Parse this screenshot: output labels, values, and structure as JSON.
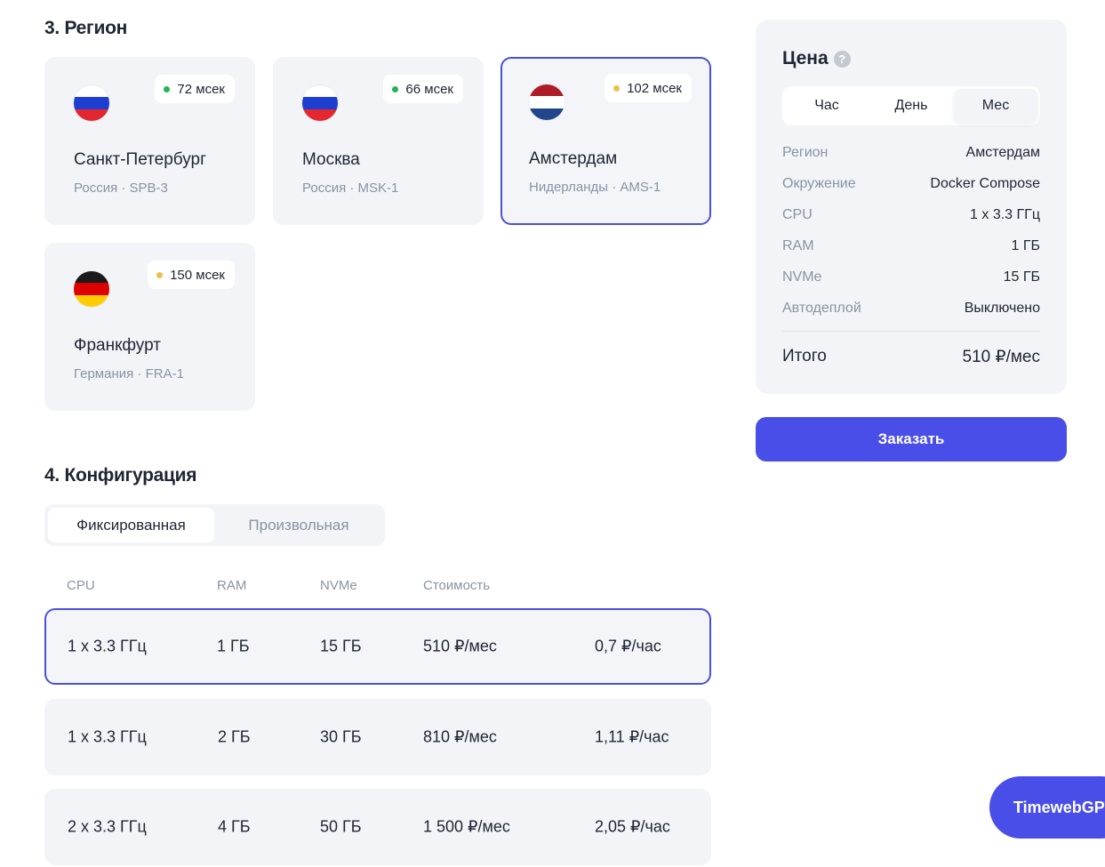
{
  "region": {
    "title": "3. Регион",
    "cards": [
      {
        "city": "Санкт-Петербург",
        "sub": "Россия · SPB-3",
        "ping": "72 мсек",
        "ping_color": "#22b35a",
        "flag": "ru",
        "selected": false
      },
      {
        "city": "Москва",
        "sub": "Россия · MSK-1",
        "ping": "66 мсек",
        "ping_color": "#22b35a",
        "flag": "ru",
        "selected": false
      },
      {
        "city": "Амстердам",
        "sub": "Нидерланды · AMS-1",
        "ping": "102 мсек",
        "ping_color": "#e9c24a",
        "flag": "nl",
        "selected": true
      },
      {
        "city": "Франкфурт",
        "sub": "Германия · FRA-1",
        "ping": "150 мсек",
        "ping_color": "#e9c24a",
        "flag": "de",
        "selected": false
      }
    ]
  },
  "config": {
    "title": "4. Конфигурация",
    "tabs": [
      {
        "label": "Фиксированная",
        "active": true
      },
      {
        "label": "Произвольная",
        "active": false
      }
    ],
    "columns": [
      "CPU",
      "RAM",
      "NVMe",
      "Стоимость"
    ],
    "rows": [
      {
        "cpu": "1 x 3.3 ГГц",
        "ram": "1 ГБ",
        "nvme": "15 ГБ",
        "price_month": "510 ₽/мес",
        "price_hour": "0,7 ₽/час",
        "selected": true
      },
      {
        "cpu": "1 x 3.3 ГГц",
        "ram": "2 ГБ",
        "nvme": "30 ГБ",
        "price_month": "810 ₽/мес",
        "price_hour": "1,11 ₽/час",
        "selected": false
      },
      {
        "cpu": "2 x 3.3 ГГц",
        "ram": "4 ГБ",
        "nvme": "50 ГБ",
        "price_month": "1 500 ₽/мес",
        "price_hour": "2,05 ₽/час",
        "selected": false
      }
    ]
  },
  "price": {
    "title": "Цена",
    "help": "?",
    "periods": [
      {
        "label": "Час",
        "active": false
      },
      {
        "label": "День",
        "active": false
      },
      {
        "label": "Мес",
        "active": true
      }
    ],
    "specs": [
      {
        "key": "Регион",
        "value": "Амстердам"
      },
      {
        "key": "Окружение",
        "value": "Docker Compose"
      },
      {
        "key": "CPU",
        "value": "1 x 3.3 ГГц"
      },
      {
        "key": "RAM",
        "value": "1 ГБ"
      },
      {
        "key": "NVMe",
        "value": "15 ГБ"
      },
      {
        "key": "Автодеплой",
        "value": "Выключено"
      }
    ],
    "total_label": "Итого",
    "total_value": "510 ₽/мес"
  },
  "order_button": "Заказать",
  "assistant_button": "TimewebGPT",
  "colors": {
    "accent": "#4a4ee8",
    "selected_border": "#4b4fd8",
    "card_bg": "#f2f4f7",
    "muted_text": "#8a93a3",
    "ping_green": "#22b35a",
    "ping_yellow": "#e9c24a"
  }
}
